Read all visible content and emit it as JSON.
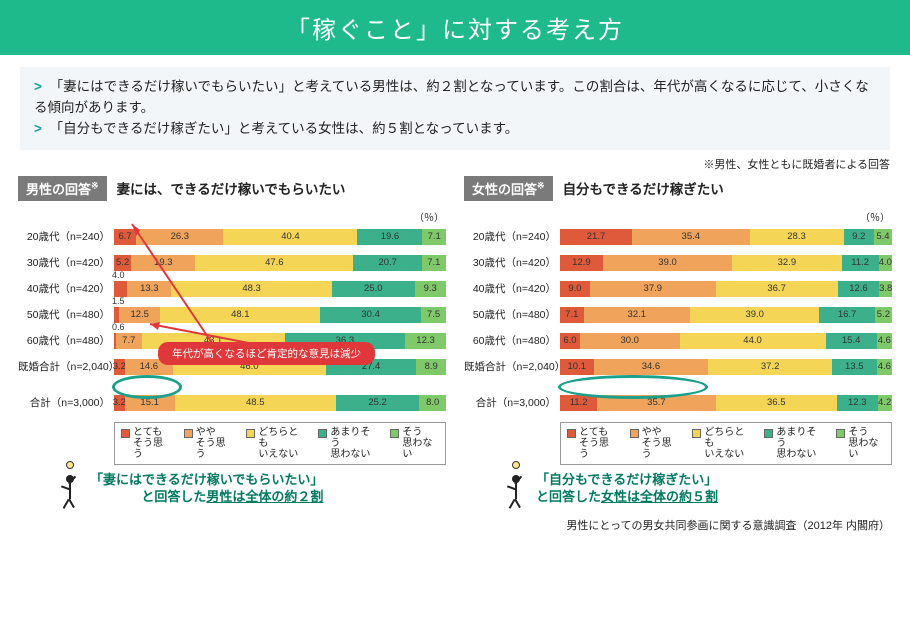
{
  "title": "「稼ぐこと」に対する考え方",
  "summary": {
    "line1_prefix": "「妻にはできるだけ稼いでもらいたい」と考えている男性は、約２割となっています。この割合は、年代が高くなるに応じて、小さくなる傾向があります。",
    "line2": "「自分もできるだけ稼ぎたい」と考えている女性は、約５割となっています。"
  },
  "note_top": "※男性、女性ともに既婚者による回答",
  "unit_label": "（％）",
  "palette": {
    "c1": "#de5a3a",
    "c2": "#f0a35a",
    "c3": "#f5d555",
    "c4": "#3bb08a",
    "c5": "#7fc96a"
  },
  "legend": [
    {
      "color": "#de5a3a",
      "label": "とても\nそう思う"
    },
    {
      "color": "#f0a35a",
      "label": "やや\nそう思う"
    },
    {
      "color": "#f5d555",
      "label": "どちらとも\nいえない"
    },
    {
      "color": "#3bb08a",
      "label": "あまりそう\n思わない"
    },
    {
      "color": "#7fc96a",
      "label": "そう\n思わない"
    }
  ],
  "charts": {
    "left": {
      "tag": "男性の回答",
      "tag_sup": "※",
      "title": "妻には、できるだけ稼いでもらいたい",
      "rows": [
        {
          "label": "20歳代（n=240）",
          "v": [
            6.7,
            26.3,
            40.4,
            19.6,
            7.1
          ],
          "outside": [
            false,
            false,
            false,
            false,
            false
          ]
        },
        {
          "label": "30歳代（n=420）",
          "v": [
            5.2,
            19.3,
            47.6,
            20.7,
            7.1
          ],
          "outside": [
            false,
            false,
            false,
            false,
            false
          ]
        },
        {
          "label": "40歳代（n=420）",
          "v": [
            4.0,
            13.3,
            48.3,
            25.0,
            9.3
          ],
          "outside": [
            true,
            false,
            false,
            false,
            false
          ]
        },
        {
          "label": "50歳代（n=480）",
          "v": [
            1.5,
            12.5,
            48.1,
            30.4,
            7.5
          ],
          "outside": [
            true,
            false,
            false,
            false,
            false
          ]
        },
        {
          "label": "60歳代（n=480）",
          "v": [
            0.6,
            7.7,
            43.1,
            36.3,
            12.3
          ],
          "outside": [
            true,
            false,
            false,
            false,
            false
          ]
        },
        {
          "label": "既婚合計（n=2,040）",
          "v": [
            3.2,
            14.6,
            46.0,
            27.4,
            8.9
          ],
          "outside": [
            false,
            false,
            false,
            false,
            false
          ]
        },
        {
          "label": "合計（n=3,000）",
          "v": [
            3.2,
            15.1,
            48.5,
            25.2,
            8.0
          ],
          "outside": [
            false,
            false,
            false,
            false,
            false
          ],
          "gap_above": true
        }
      ],
      "bubble": "年代が高くなるほど肯定的な意見は減少",
      "quote_l1": "「妻にはできるだけ稼いでもらいたい」",
      "quote_l2_a": "と回答した",
      "quote_l2_b": "男性は全体の約２割"
    },
    "right": {
      "tag": "女性の回答",
      "tag_sup": "※",
      "title": "自分もできるだけ稼ぎたい",
      "rows": [
        {
          "label": "20歳代（n=240）",
          "v": [
            21.7,
            35.4,
            28.3,
            9.2,
            5.4
          ],
          "outside": [
            false,
            false,
            false,
            false,
            false
          ]
        },
        {
          "label": "30歳代（n=420）",
          "v": [
            12.9,
            39.0,
            32.9,
            11.2,
            4.0
          ],
          "outside": [
            false,
            false,
            false,
            false,
            false
          ]
        },
        {
          "label": "40歳代（n=420）",
          "v": [
            9.0,
            37.9,
            36.7,
            12.6,
            3.8
          ],
          "outside": [
            false,
            false,
            false,
            false,
            false
          ]
        },
        {
          "label": "50歳代（n=480）",
          "v": [
            7.1,
            32.1,
            39.0,
            16.7,
            5.2
          ],
          "outside": [
            false,
            false,
            false,
            false,
            false
          ]
        },
        {
          "label": "60歳代（n=480）",
          "v": [
            6.0,
            30.0,
            44.0,
            15.4,
            4.6
          ],
          "outside": [
            false,
            false,
            false,
            false,
            false
          ]
        },
        {
          "label": "既婚合計（n=2,040）",
          "v": [
            10.1,
            34.6,
            37.2,
            13.5,
            4.6
          ],
          "outside": [
            false,
            false,
            false,
            false,
            false
          ]
        },
        {
          "label": "合計（n=3,000）",
          "v": [
            11.2,
            35.7,
            36.5,
            12.3,
            4.2
          ],
          "outside": [
            false,
            false,
            false,
            false,
            false
          ],
          "gap_above": true
        }
      ],
      "quote_l1": "「自分もできるだけ稼ぎたい」",
      "quote_l2_a": "と回答した",
      "quote_l2_b": "女性は全体の約５割"
    }
  },
  "source": "男性にとっての男女共同参画に関する意識調査（2012年 内閣府）"
}
